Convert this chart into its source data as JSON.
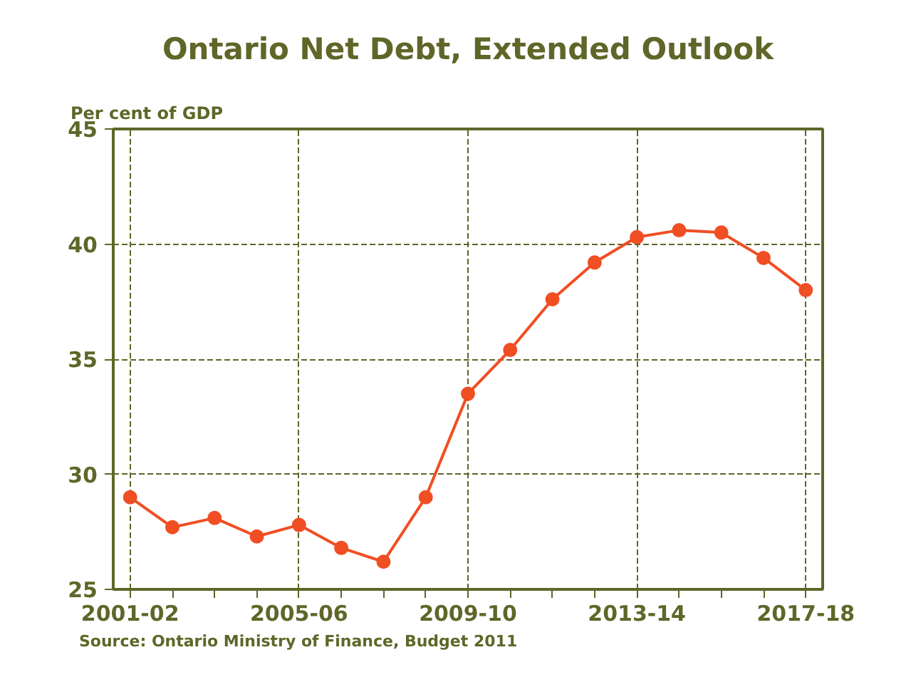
{
  "chart_data": {
    "type": "line",
    "title": "Ontario Net Debt, Extended Outlook",
    "ylabel": "Per cent of GDP",
    "categories": [
      "2001-02",
      null,
      null,
      null,
      "2005-06",
      null,
      null,
      null,
      "2009-10",
      null,
      null,
      null,
      "2013-14",
      null,
      null,
      null,
      "2017-18"
    ],
    "series": [
      {
        "color": "#f04e23",
        "values": [
          29.0,
          27.7,
          28.1,
          27.3,
          27.8,
          26.8,
          26.2,
          29.0,
          33.5,
          35.4,
          37.6,
          39.2,
          40.3,
          40.6,
          40.5,
          39.4,
          38.0
        ]
      }
    ],
    "ylim": [
      25,
      45
    ],
    "yticks": [
      25,
      30,
      35,
      40,
      45
    ],
    "grid": true,
    "marker": "circle",
    "line_style": "solid",
    "annotations": [
      "Source: Ontario Ministry of Finance, Budget 2011"
    ]
  }
}
